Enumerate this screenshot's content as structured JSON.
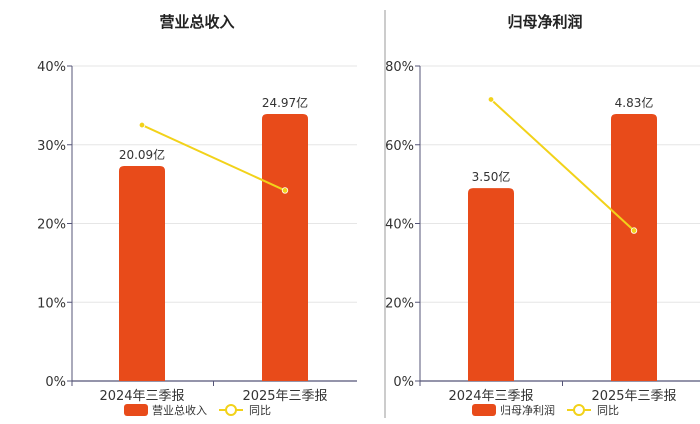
{
  "colors": {
    "bar": "#E84B1A",
    "line": "#F2D21A",
    "grid": "#E6E6E6",
    "axis": "#555577",
    "divider": "#999999"
  },
  "chart_data": [
    {
      "type": "bar",
      "title": "营业总收入",
      "categories": [
        "2024年三季报",
        "2025年三季报"
      ],
      "ylim": [
        0,
        40
      ],
      "yticks": [
        "0%",
        "10%",
        "20%",
        "30%",
        "40%"
      ],
      "series": [
        {
          "name": "营业总收入",
          "type": "bar",
          "values": [
            27.3,
            33.9
          ],
          "labels": [
            "20.09亿",
            "24.97亿"
          ]
        },
        {
          "name": "同比",
          "type": "line",
          "values": [
            32.5,
            24.2
          ]
        }
      ],
      "legend": "bottom",
      "grid": true
    },
    {
      "type": "bar",
      "title": "归母净利润",
      "categories": [
        "2024年三季报",
        "2025年三季报"
      ],
      "ylim": [
        0,
        80
      ],
      "yticks": [
        "0%",
        "20%",
        "40%",
        "60%",
        "80%"
      ],
      "series": [
        {
          "name": "归母净利润",
          "type": "bar",
          "values": [
            49.0,
            67.8
          ],
          "labels": [
            "3.50亿",
            "4.83亿"
          ]
        },
        {
          "name": "同比",
          "type": "line",
          "values": [
            71.5,
            38.2
          ]
        }
      ],
      "legend": "bottom",
      "grid": true
    }
  ]
}
